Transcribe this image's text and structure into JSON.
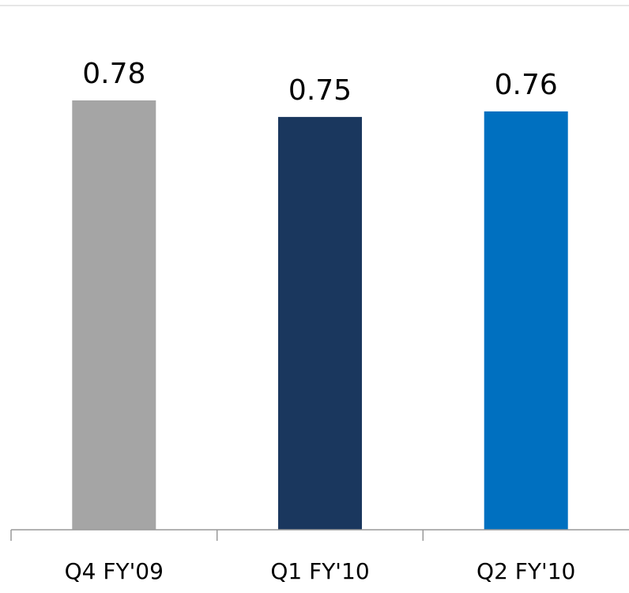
{
  "chart_data": {
    "type": "bar",
    "categories": [
      "Q4 FY'09",
      "Q1 FY'10",
      "Q2 FY'10"
    ],
    "values": [
      0.78,
      0.75,
      0.76
    ],
    "data_labels": [
      "0.78",
      "0.75",
      "0.76"
    ],
    "colors": [
      "#a5a5a5",
      "#1a375e",
      "#0070c0"
    ],
    "ylim": [
      0,
      0.78
    ],
    "grid": false,
    "legend": "none"
  }
}
